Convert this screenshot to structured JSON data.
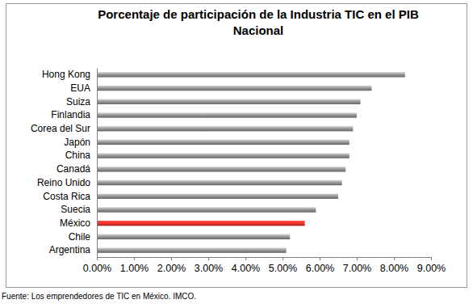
{
  "chart_data": {
    "type": "bar",
    "orientation": "horizontal",
    "title": "Porcentaje de participación de la Industria TIC en el PIB Nacional",
    "categories": [
      "Hong Kong",
      "EUA",
      "Suiza",
      "Finlandia",
      "Corea del Sur",
      "Japón",
      "China",
      "Canadá",
      "Reino Unido",
      "Costa Rica",
      "Suecia",
      "México",
      "Chile",
      "Argentina"
    ],
    "values": [
      8.3,
      7.4,
      7.1,
      7.0,
      6.9,
      6.8,
      6.8,
      6.7,
      6.6,
      6.5,
      5.9,
      5.6,
      5.2,
      5.1
    ],
    "colors": [
      "#8a8a8a",
      "#8a8a8a",
      "#8a8a8a",
      "#8a8a8a",
      "#8a8a8a",
      "#8a8a8a",
      "#8a8a8a",
      "#8a8a8a",
      "#8a8a8a",
      "#8a8a8a",
      "#8a8a8a",
      "#e0302a",
      "#8a8a8a",
      "#8a8a8a"
    ],
    "xlim": [
      0,
      9
    ],
    "xticks": [
      {
        "value": 0,
        "label": "0.00%"
      },
      {
        "value": 1,
        "label": "1.00%"
      },
      {
        "value": 2,
        "label": "2.00%"
      },
      {
        "value": 3,
        "label": "3.00%"
      },
      {
        "value": 4,
        "label": "4.00%"
      },
      {
        "value": 5,
        "label": "5.00%"
      },
      {
        "value": 6,
        "label": "6.00%"
      },
      {
        "value": 7,
        "label": "7.00%"
      },
      {
        "value": 8,
        "label": "8.00%"
      },
      {
        "value": 9,
        "label": "9.00%"
      }
    ],
    "grid": false,
    "annotations": [
      "Fuente: Los emprendedores de TIC en México. IMCO."
    ]
  }
}
